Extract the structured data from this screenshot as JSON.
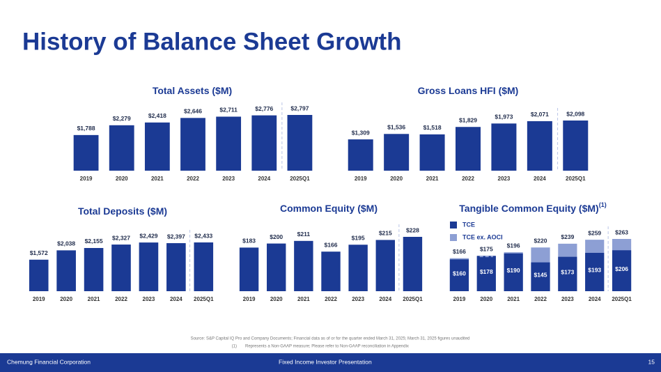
{
  "title": "History of Balance Sheet Growth",
  "chart_data": [
    {
      "type": "bar",
      "title": "Total Assets ($M)",
      "color": "#1b3a94",
      "categories": [
        "2019",
        "2020",
        "2021",
        "2022",
        "2023",
        "2024",
        "2025Q1"
      ],
      "values": [
        1788,
        2279,
        2418,
        2646,
        2711,
        2776,
        2797
      ],
      "value_labels": [
        "$1,788",
        "$2,279",
        "$2,418",
        "$2,646",
        "$2,711",
        "$2,776",
        "$2,797"
      ]
    },
    {
      "type": "bar",
      "title": "Gross Loans HFI ($M)",
      "color": "#1b3a94",
      "categories": [
        "2019",
        "2020",
        "2021",
        "2022",
        "2023",
        "2024",
        "2025Q1"
      ],
      "values": [
        1309,
        1536,
        1518,
        1829,
        1973,
        2071,
        2098
      ],
      "value_labels": [
        "$1,309",
        "$1,536",
        "$1,518",
        "$1,829",
        "$1,973",
        "$2,071",
        "$2,098"
      ]
    },
    {
      "type": "bar",
      "title": "Total Deposits ($M)",
      "color": "#1b3a94",
      "categories": [
        "2019",
        "2020",
        "2021",
        "2022",
        "2023",
        "2024",
        "2025Q1"
      ],
      "values": [
        1572,
        2038,
        2155,
        2327,
        2429,
        2397,
        2433
      ],
      "value_labels": [
        "$1,572",
        "$2,038",
        "$2,155",
        "$2,327",
        "$2,429",
        "$2,397",
        "$2,433"
      ]
    },
    {
      "type": "bar",
      "title": "Common Equity ($M)",
      "color": "#1b3a94",
      "categories": [
        "2019",
        "2020",
        "2021",
        "2022",
        "2023",
        "2024",
        "2025Q1"
      ],
      "values": [
        183,
        200,
        211,
        166,
        195,
        215,
        228
      ],
      "value_labels": [
        "$183",
        "$200",
        "$211",
        "$166",
        "$195",
        "$215",
        "$228"
      ]
    },
    {
      "type": "overlay_bar",
      "title": "Tangible Common Equity ($M)",
      "title_note": "(1)",
      "categories": [
        "2019",
        "2020",
        "2021",
        "2022",
        "2023",
        "2024",
        "2025Q1"
      ],
      "series": [
        {
          "name": "TCE",
          "color": "#1b3a94",
          "values": [
            160,
            178,
            190,
            145,
            173,
            193,
            206
          ],
          "value_labels": [
            "$160",
            "$178",
            "$190",
            "$145",
            "$173",
            "$193",
            "$206"
          ]
        },
        {
          "name": "TCE ex. AOCI",
          "color": "#8d9fd4",
          "values": [
            166,
            175,
            196,
            220,
            239,
            259,
            263
          ],
          "value_labels": [
            "$166",
            "$175",
            "$196",
            "$220",
            "$239",
            "$259",
            "$263"
          ]
        }
      ]
    }
  ],
  "source": "Source: S&P Capital IQ Pro and Company Documents; Financial data as of or for the quarter ended March 31, 2025; March 31, 2025 figures unaudited",
  "footnote": {
    "marker": "(1)",
    "text": "Represents a Non-GAAP measure; Please refer to Non-GAAP reconciliation in Appendix"
  },
  "footer": {
    "company": "Chemung Financial Corporation",
    "presentation": "Fixed Income Investor Presentation",
    "page": 15
  }
}
